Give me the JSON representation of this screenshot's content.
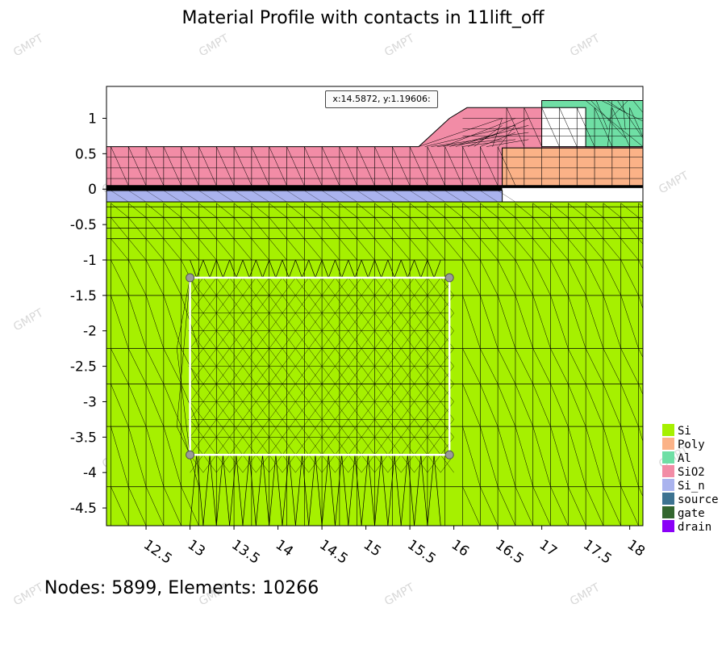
{
  "title": "Material Profile with contacts in 11lift_off",
  "coord_readout": "x:14.5872, y:1.19606:",
  "footer": "Nodes: 5899, Elements: 10266",
  "watermark": "GMPT",
  "chart_data": {
    "type": "heatmap",
    "title": "Material Profile with contacts in 11lift_off",
    "xlim": [
      12.05,
      18.15
    ],
    "ylim": [
      -4.75,
      1.45
    ],
    "x_ticks": [
      12.5,
      13,
      13.5,
      14,
      14.5,
      15,
      15.5,
      16,
      16.5,
      17,
      17.5,
      18
    ],
    "x_tick_labels": [
      "12.5",
      "13",
      "13.5",
      "14",
      "14.5",
      "15",
      "15.5",
      "16",
      "16.5",
      "17",
      "17.5",
      "18"
    ],
    "y_ticks": [
      1,
      0.5,
      0,
      -0.5,
      -1,
      -1.5,
      -2,
      -2.5,
      -3,
      -3.5,
      -4,
      -4.5
    ],
    "y_tick_labels": [
      "1",
      "0.5",
      "0",
      "-0.5",
      "-1",
      "-1.5",
      "-2",
      "-2.5",
      "-3",
      "-3.5",
      "-4",
      "-4.5"
    ],
    "legend_position": "right",
    "legend": [
      {
        "name": "Si",
        "color": "#a6f000"
      },
      {
        "name": "Poly",
        "color": "#fbb287"
      },
      {
        "name": "Al",
        "color": "#6fdfa5"
      },
      {
        "name": "SiO2",
        "color": "#f28ca6"
      },
      {
        "name": "Si_n",
        "color": "#aab3ee"
      },
      {
        "name": "source",
        "color": "#3d7391"
      },
      {
        "name": "gate",
        "color": "#33662f"
      },
      {
        "name": "drain",
        "color": "#8a00f7"
      }
    ],
    "regions": [
      {
        "material": "Si",
        "polygon": [
          [
            12.05,
            -0.18
          ],
          [
            18.15,
            -0.18
          ],
          [
            18.15,
            -4.75
          ],
          [
            12.05,
            -4.75
          ]
        ]
      },
      {
        "material": "Si_n",
        "polygon": [
          [
            12.05,
            -0.02
          ],
          [
            16.55,
            -0.02
          ],
          [
            16.55,
            -0.18
          ],
          [
            12.05,
            -0.18
          ]
        ]
      },
      {
        "material": "SiO2",
        "polygon": [
          [
            12.05,
            0.6
          ],
          [
            15.6,
            0.6
          ],
          [
            15.95,
            1.0
          ],
          [
            16.15,
            1.15
          ],
          [
            17.0,
            1.15
          ],
          [
            17.0,
            0.6
          ],
          [
            18.15,
            0.6
          ],
          [
            18.15,
            0.58
          ],
          [
            16.55,
            0.58
          ],
          [
            16.55,
            0.05
          ],
          [
            12.05,
            0.05
          ]
        ]
      },
      {
        "material": "Poly",
        "polygon": [
          [
            16.55,
            0.58
          ],
          [
            18.15,
            0.58
          ],
          [
            18.15,
            0.05
          ],
          [
            16.55,
            0.05
          ]
        ]
      },
      {
        "material": "Al",
        "polygon": [
          [
            17.0,
            1.25
          ],
          [
            18.15,
            1.25
          ],
          [
            18.15,
            0.6
          ],
          [
            17.5,
            0.6
          ],
          [
            17.5,
            1.15
          ],
          [
            17.0,
            1.15
          ]
        ]
      }
    ],
    "selection_box": {
      "x": [
        13.0,
        15.95
      ],
      "y": [
        -1.25,
        -3.75
      ]
    }
  }
}
